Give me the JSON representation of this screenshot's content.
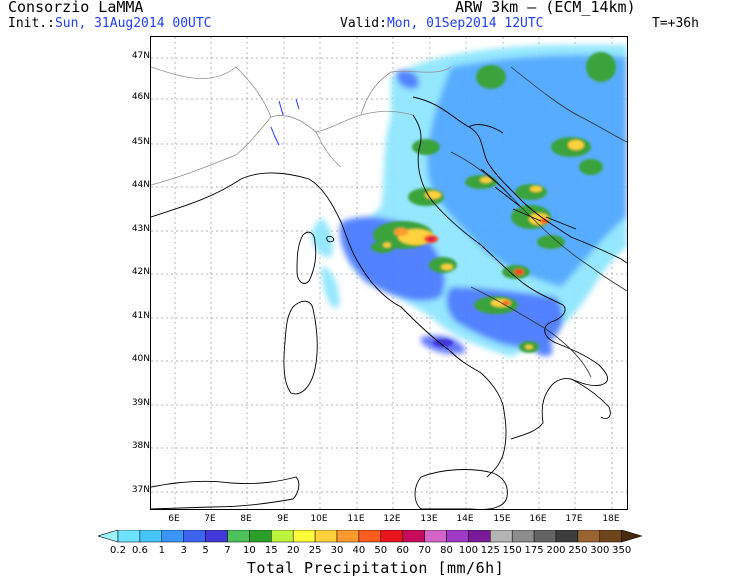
{
  "header": {
    "org": "Consorzio LaMMA",
    "init_label": "Init.:",
    "init_value": "Sun, 31Aug2014 00UTC",
    "valid_label": "Valid:",
    "valid_value": "Mon, 01Sep2014 12UTC",
    "model": "ARW 3km – (ECM_14km)",
    "step": "T=+36h"
  },
  "axes": {
    "lat_labels": [
      "47N",
      "46N",
      "45N",
      "44N",
      "43N",
      "42N",
      "41N",
      "40N",
      "39N",
      "38N",
      "37N"
    ],
    "lon_labels": [
      "6E",
      "7E",
      "8E",
      "9E",
      "10E",
      "11E",
      "12E",
      "13E",
      "14E",
      "15E",
      "16E",
      "17E",
      "18E"
    ]
  },
  "colorbar": {
    "title": "Total Precipitation [mm/6h]",
    "labels": [
      "0.2",
      "0.6",
      "1",
      "3",
      "5",
      "7",
      "10",
      "15",
      "20",
      "25",
      "30",
      "40",
      "50",
      "60",
      "70",
      "80",
      "100",
      "125",
      "150",
      "175",
      "200",
      "250",
      "300",
      "350"
    ],
    "colors": [
      "#9ff5ff",
      "#6ee3ff",
      "#45c5ff",
      "#3a95ff",
      "#3d63f5",
      "#4338d8",
      "#4cc35a",
      "#2aa02a",
      "#bdf53c",
      "#ffff3c",
      "#ffd23c",
      "#ff9b2c",
      "#ff5b1c",
      "#e8141c",
      "#c80a5c",
      "#d264c8",
      "#a038c8",
      "#7a1a9a",
      "#b4b4b4",
      "#8c8c8c",
      "#646464",
      "#3c3c3c",
      "#9a6430",
      "#6e4419",
      "#4a2a0a"
    ]
  }
}
